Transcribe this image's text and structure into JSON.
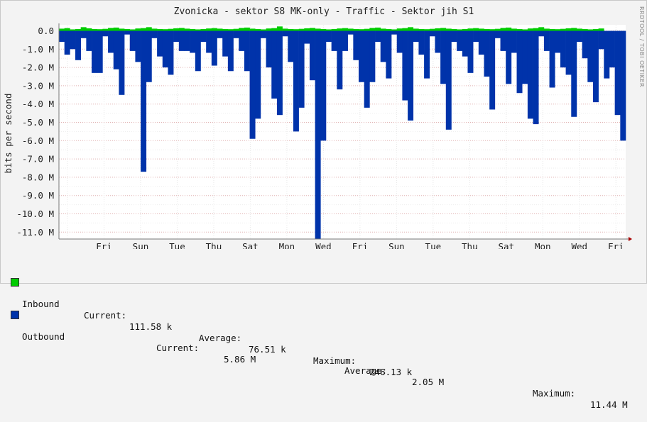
{
  "chart_data": {
    "type": "area",
    "title": "Zvonicka - sektor S8 MK-only - Traffic - Sektor jih S1",
    "ylabel": "bits per second",
    "ylim": [
      -11.5,
      0.3
    ],
    "y_unit": "M",
    "yticks": [
      "0.0",
      "-1.0 M",
      "-2.0 M",
      "-3.0 M",
      "-4.0 M",
      "-5.0 M",
      "-6.0 M",
      "-7.0 M",
      "-8.0 M",
      "-9.0 M",
      "-10.0 M",
      "-11.0 M"
    ],
    "xticks": [
      "Fri",
      "Sun",
      "Tue",
      "Thu",
      "Sat",
      "Mon",
      "Wed",
      "Fri",
      "Sun",
      "Tue",
      "Thu",
      "Sat",
      "Mon",
      "Wed",
      "Fri"
    ],
    "grid": true,
    "series": [
      {
        "name": "Inbound",
        "color": "#00cc00",
        "values": [
          0.12,
          0.15,
          0.08,
          0.1,
          0.2,
          0.14,
          0.1,
          0.09,
          0.11,
          0.16,
          0.18,
          0.12,
          0.1,
          0.08,
          0.13,
          0.15,
          0.2,
          0.12,
          0.1,
          0.09,
          0.11,
          0.14,
          0.16,
          0.12,
          0.1,
          0.08,
          0.1,
          0.13,
          0.15,
          0.12,
          0.1,
          0.09,
          0.11,
          0.16,
          0.18,
          0.12,
          0.1,
          0.08,
          0.13,
          0.15,
          0.24,
          0.12,
          0.1,
          0.09,
          0.11,
          0.14,
          0.16,
          0.12,
          0.1,
          0.08,
          0.1,
          0.13,
          0.15,
          0.12,
          0.1,
          0.09,
          0.11,
          0.16,
          0.18,
          0.12,
          0.1,
          0.08,
          0.13,
          0.15,
          0.2,
          0.12,
          0.1,
          0.09,
          0.11,
          0.14,
          0.16,
          0.12,
          0.1,
          0.08,
          0.1,
          0.13,
          0.15,
          0.12,
          0.1,
          0.09,
          0.11,
          0.16,
          0.18,
          0.12,
          0.1,
          0.08,
          0.13,
          0.15,
          0.2,
          0.12,
          0.1,
          0.09,
          0.11,
          0.14,
          0.16,
          0.12,
          0.1,
          0.08,
          0.1,
          0.13
        ]
      },
      {
        "name": "Outbound",
        "color": "#0033aa",
        "values": [
          -0.6,
          -1.3,
          -1.0,
          -1.6,
          -0.4,
          -1.1,
          -2.3,
          -2.3,
          -0.3,
          -1.2,
          -2.1,
          -3.5,
          -0.2,
          -1.1,
          -1.7,
          -7.7,
          -2.8,
          -0.4,
          -1.4,
          -2.0,
          -2.4,
          -0.6,
          -1.1,
          -1.1,
          -1.2,
          -2.2,
          -0.6,
          -1.2,
          -1.9,
          -0.4,
          -1.4,
          -2.2,
          -0.4,
          -1.1,
          -2.2,
          -5.9,
          -4.8,
          -0.4,
          -2.0,
          -3.7,
          -4.6,
          -0.3,
          -1.7,
          -5.5,
          -4.2,
          -0.7,
          -2.7,
          -11.5,
          -6.0,
          -0.6,
          -1.1,
          -3.2,
          -1.1,
          -0.2,
          -1.6,
          -2.8,
          -4.2,
          -2.8,
          -0.6,
          -1.7,
          -2.6,
          -0.2,
          -1.2,
          -3.8,
          -4.9,
          -0.6,
          -1.3,
          -2.6,
          -0.3,
          -1.2,
          -2.9,
          -5.4,
          -0.6,
          -1.1,
          -1.4,
          -2.3,
          -0.6,
          -1.3,
          -2.5,
          -4.3,
          -0.4,
          -1.1,
          -2.9,
          -1.2,
          -3.4,
          -2.9,
          -4.8,
          -5.1,
          -0.3,
          -1.1,
          -3.1,
          -1.2,
          -2.0,
          -2.4,
          -4.7,
          -0.6,
          -1.5,
          -2.8,
          -3.9,
          -1.0,
          -2.6,
          -2.0,
          -4.6,
          -6.0
        ]
      }
    ]
  },
  "legend": [
    {
      "name": "Inbound",
      "color": "#00cc00",
      "current_label": "Current:",
      "current": "111.58 k",
      "average_label": "Average:",
      "average": "76.51 k",
      "maximum_label": "Maximum:",
      "maximum": "246.13 k"
    },
    {
      "name": "Outbound",
      "color": "#0033aa",
      "current_label": "Current:",
      "current": "5.86 M",
      "average_label": "Average:",
      "average": "2.05 M",
      "maximum_label": "Maximum:",
      "maximum": "11.44 M"
    }
  ],
  "credit": "RRDTOOL / TOBI OETIKER"
}
